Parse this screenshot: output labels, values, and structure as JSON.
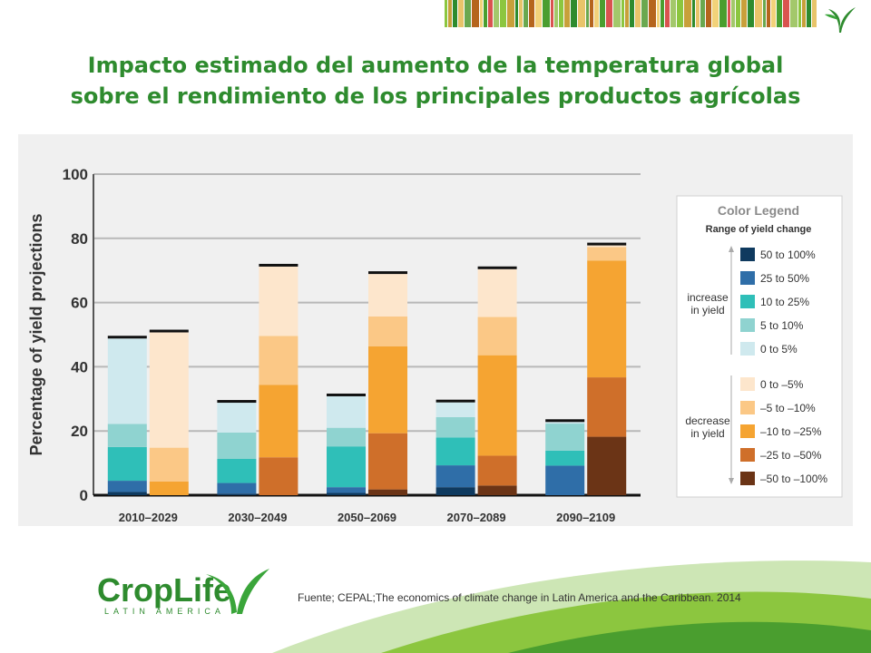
{
  "title_line1": "Impacto estimado del aumento de la temperatura global",
  "title_line2": "sobre el rendimiento de los principales productos agrícolas",
  "source": "Fuente; CEPAL;The economics of climate change in Latin America and the Caribbean. 2014",
  "logo": {
    "name": "CropLife",
    "sub": "LATIN AMERICA"
  },
  "colors": {
    "inc_50_100": "#0f3a5f",
    "inc_25_50": "#2f6ea8",
    "inc_10_25": "#2fbfb8",
    "inc_5_10": "#8fd3d0",
    "inc_0_5": "#cfe9ee",
    "dec_0_5": "#fde6cc",
    "dec_5_10": "#fbc886",
    "dec_10_25": "#f5a432",
    "dec_25_50": "#cf6f2a",
    "dec_50_100": "#6b3416",
    "brand_green": "#2e8b2e"
  },
  "chart_data": {
    "type": "bar",
    "stacked": true,
    "categories": [
      "2010–2029",
      "2030–2049",
      "2050–2069",
      "2070–2089",
      "2090–2109"
    ],
    "ylabel": "Percentage of yield projections",
    "ylim": [
      0,
      100
    ],
    "yticks": [
      0,
      20,
      40,
      60,
      80,
      100
    ],
    "grid": true,
    "legend_position": "right",
    "legend": {
      "title": "Color Legend",
      "subtitle": "Range of yield change",
      "increase_label": [
        "increase",
        "in yield"
      ],
      "decrease_label": [
        "decrease",
        "in yield"
      ],
      "increase_items": [
        {
          "key": "inc_50_100",
          "label": "50 to 100%"
        },
        {
          "key": "inc_25_50",
          "label": "25 to 50%"
        },
        {
          "key": "inc_10_25",
          "label": "10 to 25%"
        },
        {
          "key": "inc_5_10",
          "label": "5 to 10%"
        },
        {
          "key": "inc_0_5",
          "label": "0 to 5%"
        }
      ],
      "decrease_items": [
        {
          "key": "dec_0_5",
          "label": "0 to –5%"
        },
        {
          "key": "dec_5_10",
          "label": "–5 to –10%"
        },
        {
          "key": "dec_10_25",
          "label": "–10 to –25%"
        },
        {
          "key": "dec_25_50",
          "label": "–25 to –50%"
        },
        {
          "key": "dec_50_100",
          "label": "–50 to –100%"
        }
      ]
    },
    "increase_series": [
      {
        "key": "inc_50_100",
        "values": [
          1,
          0.5,
          0.7,
          2.5,
          0
        ]
      },
      {
        "key": "inc_25_50",
        "values": [
          3.5,
          3.3,
          1.8,
          6.8,
          9.2
        ]
      },
      {
        "key": "inc_10_25",
        "values": [
          10.5,
          7.5,
          12.7,
          8.7,
          4.7
        ]
      },
      {
        "key": "inc_5_10",
        "values": [
          7.2,
          8.2,
          5.8,
          6.3,
          8.4
        ]
      },
      {
        "key": "inc_0_5",
        "values": [
          26.6,
          9.3,
          9.8,
          4.6,
          0.5
        ]
      }
    ],
    "decrease_series": [
      {
        "key": "dec_50_100",
        "values": [
          0,
          0,
          1.8,
          3,
          18.2
        ]
      },
      {
        "key": "dec_25_50",
        "values": [
          0,
          11.8,
          17.5,
          9.3,
          18.5
        ]
      },
      {
        "key": "dec_10_25",
        "values": [
          4.3,
          22.6,
          27.1,
          31.3,
          36.4
        ]
      },
      {
        "key": "dec_5_10",
        "values": [
          10.5,
          15.2,
          9.3,
          11.9,
          4.2
        ]
      },
      {
        "key": "dec_0_5",
        "values": [
          35.9,
          21.6,
          13.2,
          14.9,
          0.5
        ]
      }
    ]
  }
}
